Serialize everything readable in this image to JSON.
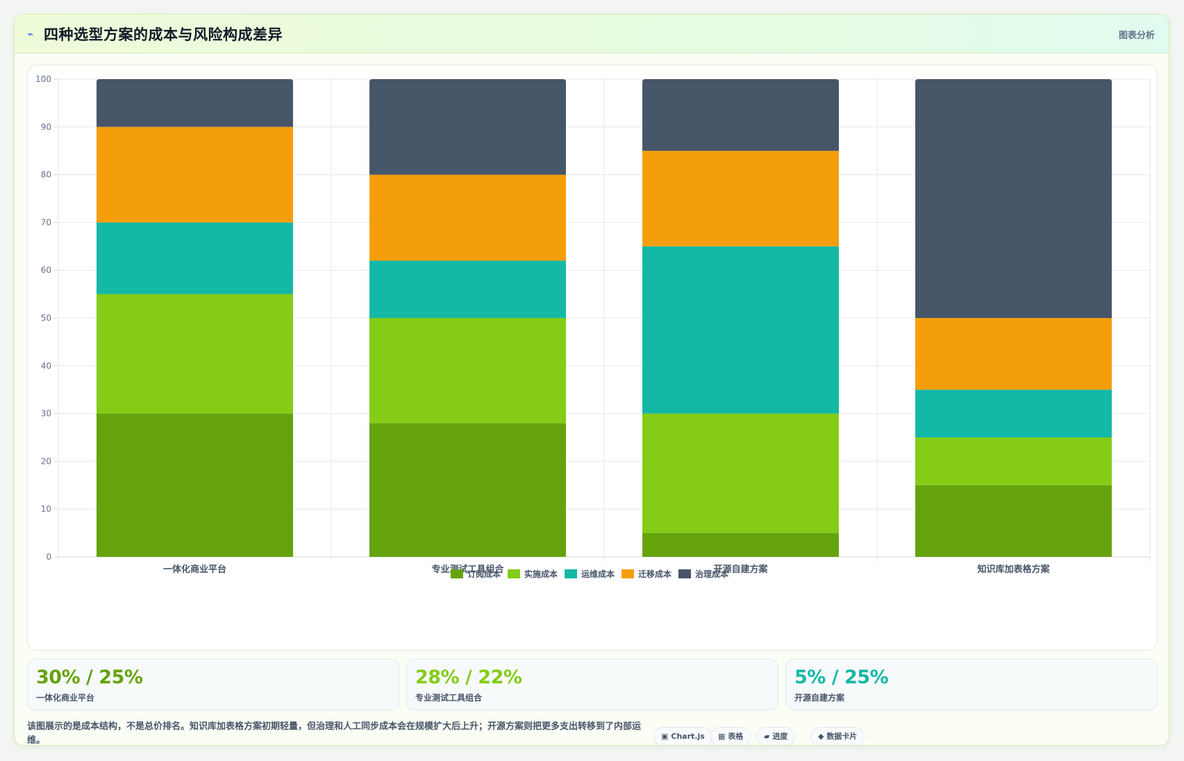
{
  "header": {
    "icon": "lightning-icon",
    "title": "四种选型方案的成本与风险构成差异",
    "tag": "图表分析"
  },
  "chart_data": {
    "type": "bar",
    "stacked": true,
    "categories": [
      "一体化商业平台",
      "专业测试工具组合",
      "开源自建方案",
      "知识库加表格方案"
    ],
    "series": [
      {
        "name": "订阅成本",
        "color": "#65a30d",
        "values": [
          30,
          28,
          5,
          15
        ]
      },
      {
        "name": "实施成本",
        "color": "#84cc16",
        "values": [
          25,
          22,
          25,
          10
        ]
      },
      {
        "name": "运维成本",
        "color": "#14b8a6",
        "values": [
          15,
          12,
          35,
          10
        ]
      },
      {
        "name": "迁移成本",
        "color": "#f59e0b",
        "values": [
          20,
          18,
          20,
          15
        ]
      },
      {
        "name": "治理成本",
        "color": "#475569",
        "values": [
          10,
          20,
          15,
          50
        ]
      }
    ],
    "ylim": [
      0,
      100
    ],
    "yticks": [
      0,
      10,
      20,
      30,
      40,
      50,
      60,
      70,
      80,
      90,
      100
    ],
    "grid": true,
    "legend": "bottom"
  },
  "stats": [
    {
      "value": "30% / 25%",
      "label": "一体化商业平台",
      "color": "#65a30d"
    },
    {
      "value": "28% / 22%",
      "label": "专业测试工具组合",
      "color": "#84cc16"
    },
    {
      "value": "5% / 25%",
      "label": "开源自建方案",
      "color": "#14b8a6"
    }
  ],
  "note": "该图展示的是成本结构，不是总价排名。知识库加表格方案初期轻量，但治理和人工同步成本会在规模扩大后上升；开源方案则把更多支出转移到了内部运维。",
  "pills": [
    {
      "icon": "▣",
      "label": "Chart.js"
    },
    {
      "icon": "▦",
      "label": "表格"
    },
    {
      "icon": "▰",
      "label": "进度"
    },
    {
      "icon": "◆",
      "label": "数据卡片"
    }
  ]
}
